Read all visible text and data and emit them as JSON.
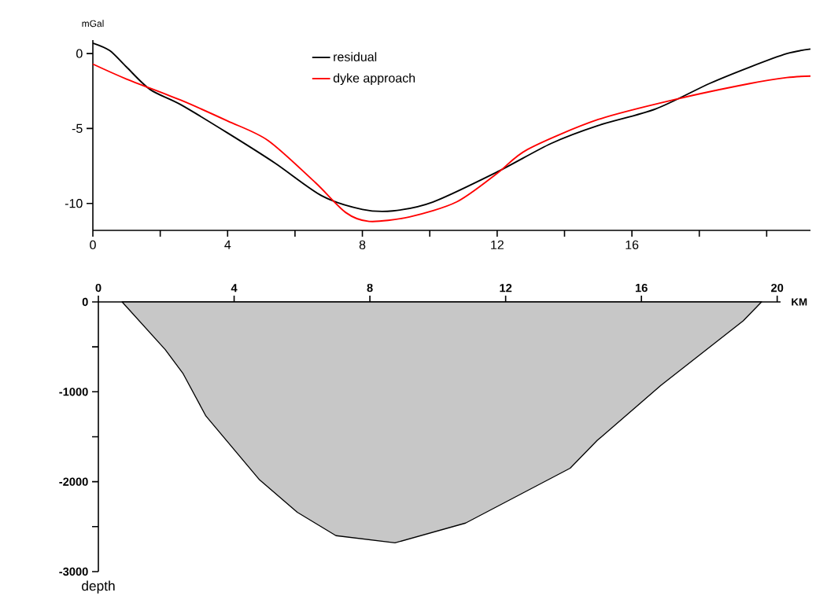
{
  "chart_data": [
    {
      "type": "line",
      "ylabel": "mGal",
      "xlim": [
        0,
        21.3
      ],
      "ylim": [
        -11.8,
        0.9
      ],
      "xticks": [
        0,
        {
          "value": 2,
          "label": null
        },
        4,
        {
          "value": 6,
          "label": null
        },
        8,
        {
          "value": 10,
          "label": null
        },
        12,
        {
          "value": 14,
          "label": null
        },
        16,
        {
          "value": 18,
          "label": null
        },
        {
          "value": 20,
          "label": null
        }
      ],
      "yticks": [
        0,
        -5,
        -10
      ],
      "legend": "top",
      "marker": "none",
      "line_style": "solid",
      "series": [
        {
          "name": "residual",
          "color": "#000000",
          "x": [
            0,
            0.5,
            1.0,
            1.7,
            2.6,
            4.0,
            5.4,
            6.8,
            8.0,
            8.9,
            10.1,
            12.0,
            13.6,
            15.0,
            16.7,
            18.3,
            19.5,
            20.6,
            21.3
          ],
          "values": [
            0.7,
            0.2,
            -0.9,
            -2.4,
            -3.4,
            -5.3,
            -7.3,
            -9.5,
            -10.4,
            -10.5,
            -9.9,
            -7.9,
            -6.0,
            -4.8,
            -3.7,
            -2.0,
            -0.9,
            0.0,
            0.3
          ]
        },
        {
          "name": "dyke approach",
          "color": "#ff0000",
          "x": [
            0,
            1.0,
            2.6,
            4.0,
            5.2,
            6.6,
            7.5,
            8.2,
            9.4,
            10.8,
            12.0,
            12.9,
            15.0,
            17.4,
            19.5,
            20.6,
            21.3
          ],
          "values": [
            -0.7,
            -1.7,
            -3.1,
            -4.5,
            -5.8,
            -8.6,
            -10.6,
            -11.2,
            -10.9,
            -9.9,
            -8.0,
            -6.4,
            -4.4,
            -3.0,
            -2.0,
            -1.6,
            -1.5
          ]
        }
      ]
    },
    {
      "type": "area",
      "xlabel": "KM",
      "ylabel": "depth",
      "xlim": [
        0,
        20.1
      ],
      "ylim": [
        -3000,
        0
      ],
      "xticks": [
        0,
        4,
        8,
        12,
        16,
        20
      ],
      "yticks": [
        0,
        {
          "value": -500,
          "label": null
        },
        -1000,
        {
          "value": -1500,
          "label": null
        },
        -2000,
        {
          "value": -2500,
          "label": null
        },
        -3000
      ],
      "series": [
        {
          "color": "#000000",
          "x": [
            0.7,
            1.97,
            2.5,
            3.17,
            4.75,
            5.86,
            7.0,
            8.74,
            10.82,
            13.9,
            14.7,
            16.57,
            19.0,
            19.54
          ],
          "values": [
            0,
            -530,
            -800,
            -1270,
            -1980,
            -2340,
            -2600,
            -2680,
            -2460,
            -1850,
            -1540,
            -930,
            -210,
            0
          ]
        }
      ]
    }
  ]
}
